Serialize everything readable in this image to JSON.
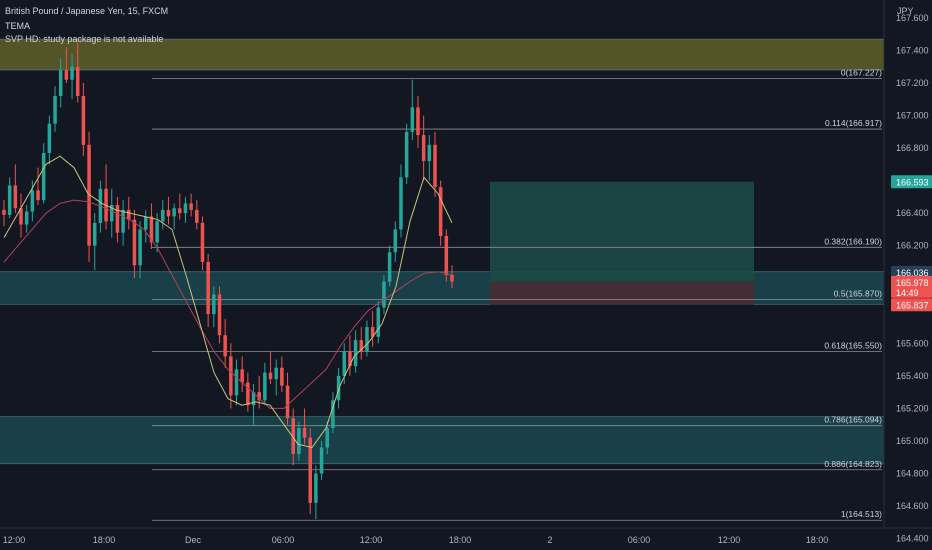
{
  "header": {
    "symbol_line": "British Pound / Japanese Yen, 15, FXCM",
    "indicator_1": "TEMA",
    "indicator_2": "SVP HD: study package is not available"
  },
  "axis": {
    "currency": "JPY"
  },
  "colors": {
    "background": "#131722",
    "up_candle": "#26a69a",
    "down_candle": "#ef5350",
    "supply_zone": "#6b6a2c",
    "demand_zone": "#1e5a63",
    "target_box": "#1d4a46",
    "stop_box": "#4a2a33",
    "tema_line": "#c9c37a",
    "ma_line": "#b0415a",
    "fib_line": "#8c8f99"
  },
  "chart_data": {
    "type": "candlestick",
    "symbol": "GBPJPY",
    "timeframe": "15",
    "y_ticks": [
      167.6,
      167.4,
      167.2,
      167.0,
      166.8,
      166.4,
      166.2,
      165.6,
      165.4,
      165.2,
      165.0,
      164.8,
      164.6,
      164.4
    ],
    "x_ticks": [
      "12:00",
      "18:00",
      "Dec",
      "06:00",
      "12:00",
      "18:00",
      "2",
      "06:00",
      "12:00",
      "18:00"
    ],
    "ylim": [
      164.33,
      167.71
    ],
    "fib_levels": [
      {
        "ratio": "0",
        "price": 167.227
      },
      {
        "ratio": "0.114",
        "price": 166.917
      },
      {
        "ratio": "0.382",
        "price": 166.19
      },
      {
        "ratio": "0.5",
        "price": 165.87
      },
      {
        "ratio": "0.618",
        "price": 165.55
      },
      {
        "ratio": "0.786",
        "price": 165.094
      },
      {
        "ratio": "0.886",
        "price": 164.823
      },
      {
        "ratio": "1",
        "price": 164.513
      }
    ],
    "price_tags": [
      {
        "label": "166.593",
        "price": 166.593,
        "color": "#26a69a"
      },
      {
        "label": "166.036",
        "price": 166.036,
        "color": "#2a3f57"
      },
      {
        "label": "165.978",
        "sub": "14:49",
        "price": 165.978,
        "color": "#ef5350"
      },
      {
        "label": "165.837",
        "price": 165.837,
        "color": "#ef5350"
      }
    ],
    "zones": [
      {
        "name": "supply",
        "top": 167.47,
        "bottom": 167.28
      },
      {
        "name": "demand-mid",
        "top": 166.04,
        "bottom": 165.84
      },
      {
        "name": "demand-low",
        "top": 165.15,
        "bottom": 164.86
      }
    ],
    "position": {
      "entry": 165.978,
      "target": 166.593,
      "stop": 165.837
    },
    "candles": [
      [
        166.42,
        166.48,
        166.32,
        166.39
      ],
      [
        166.39,
        166.62,
        166.37,
        166.57
      ],
      [
        166.57,
        166.7,
        166.4,
        166.43
      ],
      [
        166.43,
        166.52,
        166.25,
        166.33
      ],
      [
        166.33,
        166.45,
        166.28,
        166.41
      ],
      [
        166.41,
        166.6,
        166.35,
        166.54
      ],
      [
        166.54,
        166.68,
        166.45,
        166.48
      ],
      [
        166.48,
        166.83,
        166.46,
        166.77
      ],
      [
        166.77,
        167.0,
        166.7,
        166.95
      ],
      [
        166.95,
        167.18,
        166.9,
        167.12
      ],
      [
        167.12,
        167.35,
        167.05,
        167.28
      ],
      [
        167.28,
        167.42,
        167.2,
        167.22
      ],
      [
        167.22,
        167.38,
        167.1,
        167.3
      ],
      [
        167.3,
        167.45,
        167.08,
        167.12
      ],
      [
        167.12,
        167.2,
        166.75,
        166.82
      ],
      [
        166.82,
        166.9,
        166.1,
        166.2
      ],
      [
        166.2,
        166.4,
        166.05,
        166.34
      ],
      [
        166.34,
        166.6,
        166.28,
        166.55
      ],
      [
        166.55,
        166.7,
        166.3,
        166.35
      ],
      [
        166.35,
        166.55,
        166.25,
        166.45
      ],
      [
        166.45,
        166.5,
        166.22,
        166.28
      ],
      [
        166.28,
        166.48,
        166.2,
        166.42
      ],
      [
        166.42,
        166.5,
        166.3,
        166.36
      ],
      [
        166.36,
        166.42,
        166.0,
        166.08
      ],
      [
        166.08,
        166.35,
        166.0,
        166.3
      ],
      [
        166.3,
        166.42,
        166.22,
        166.38
      ],
      [
        166.38,
        166.46,
        166.18,
        166.22
      ],
      [
        166.22,
        166.4,
        166.16,
        166.35
      ],
      [
        166.35,
        166.48,
        166.3,
        166.42
      ],
      [
        166.42,
        166.5,
        166.33,
        166.38
      ],
      [
        166.38,
        166.46,
        166.3,
        166.43
      ],
      [
        166.43,
        166.52,
        166.36,
        166.4
      ],
      [
        166.4,
        166.5,
        166.34,
        166.46
      ],
      [
        166.46,
        166.52,
        166.38,
        166.42
      ],
      [
        166.42,
        166.48,
        166.3,
        166.34
      ],
      [
        166.34,
        166.38,
        166.05,
        166.1
      ],
      [
        166.1,
        166.15,
        165.7,
        165.78
      ],
      [
        165.78,
        165.95,
        165.7,
        165.9
      ],
      [
        165.9,
        165.95,
        165.6,
        165.65
      ],
      [
        165.65,
        165.75,
        165.45,
        165.52
      ],
      [
        165.52,
        165.6,
        165.2,
        165.28
      ],
      [
        165.28,
        165.5,
        165.22,
        165.44
      ],
      [
        165.44,
        165.52,
        165.3,
        165.36
      ],
      [
        165.36,
        165.42,
        165.18,
        165.22
      ],
      [
        165.22,
        165.35,
        165.1,
        165.3
      ],
      [
        165.3,
        165.4,
        165.2,
        165.25
      ],
      [
        165.25,
        165.48,
        165.22,
        165.42
      ],
      [
        165.42,
        165.55,
        165.35,
        165.38
      ],
      [
        165.38,
        165.5,
        165.28,
        165.45
      ],
      [
        165.45,
        165.52,
        165.3,
        165.34
      ],
      [
        165.34,
        165.42,
        165.1,
        165.14
      ],
      [
        165.14,
        165.2,
        164.85,
        164.92
      ],
      [
        164.92,
        165.12,
        164.88,
        165.08
      ],
      [
        165.08,
        165.2,
        164.98,
        165.02
      ],
      [
        165.02,
        165.08,
        164.55,
        164.62
      ],
      [
        164.62,
        164.85,
        164.52,
        164.8
      ],
      [
        164.8,
        165.0,
        164.76,
        164.96
      ],
      [
        164.96,
        165.12,
        164.92,
        165.08
      ],
      [
        165.08,
        165.3,
        165.05,
        165.25
      ],
      [
        165.25,
        165.45,
        165.2,
        165.4
      ],
      [
        165.4,
        165.6,
        165.35,
        165.55
      ],
      [
        165.55,
        165.65,
        165.4,
        165.46
      ],
      [
        165.46,
        165.68,
        165.42,
        165.62
      ],
      [
        165.62,
        165.7,
        165.5,
        165.55
      ],
      [
        165.55,
        165.74,
        165.52,
        165.7
      ],
      [
        165.7,
        165.8,
        165.58,
        165.64
      ],
      [
        165.64,
        165.86,
        165.6,
        165.82
      ],
      [
        165.82,
        166.02,
        165.78,
        165.98
      ],
      [
        165.98,
        166.2,
        165.95,
        166.16
      ],
      [
        166.16,
        166.35,
        166.1,
        166.3
      ],
      [
        166.3,
        166.7,
        166.25,
        166.62
      ],
      [
        166.62,
        166.95,
        166.58,
        166.9
      ],
      [
        166.9,
        167.22,
        166.85,
        167.05
      ],
      [
        167.05,
        167.12,
        166.8,
        166.88
      ],
      [
        166.88,
        167.0,
        166.6,
        166.72
      ],
      [
        166.72,
        166.88,
        166.6,
        166.82
      ],
      [
        166.82,
        166.9,
        166.5,
        166.56
      ],
      [
        166.56,
        166.6,
        166.2,
        166.26
      ],
      [
        166.26,
        166.3,
        165.98,
        166.02
      ],
      [
        166.02,
        166.08,
        165.94,
        165.98
      ]
    ],
    "tema_points": [
      166.25,
      166.4,
      166.55,
      166.7,
      166.75,
      166.68,
      166.52,
      166.46,
      166.42,
      166.4,
      166.38,
      166.36,
      166.3,
      166.02,
      165.72,
      165.42,
      165.26,
      165.22,
      165.24,
      165.22,
      165.1,
      164.98,
      164.96,
      165.08,
      165.34,
      165.52,
      165.6,
      165.72,
      165.95,
      166.35,
      166.62,
      166.52,
      166.34
    ],
    "ma_points": [
      166.1,
      166.2,
      166.3,
      166.4,
      166.46,
      166.48,
      166.47,
      166.44,
      166.4,
      166.36,
      166.3,
      166.18,
      166.02,
      165.86,
      165.7,
      165.55,
      165.44,
      165.36,
      165.28,
      165.2,
      165.2,
      165.28,
      165.36,
      165.44,
      165.58,
      165.7,
      165.8,
      165.86,
      165.92,
      165.98,
      166.03,
      166.04,
      166.02
    ]
  }
}
